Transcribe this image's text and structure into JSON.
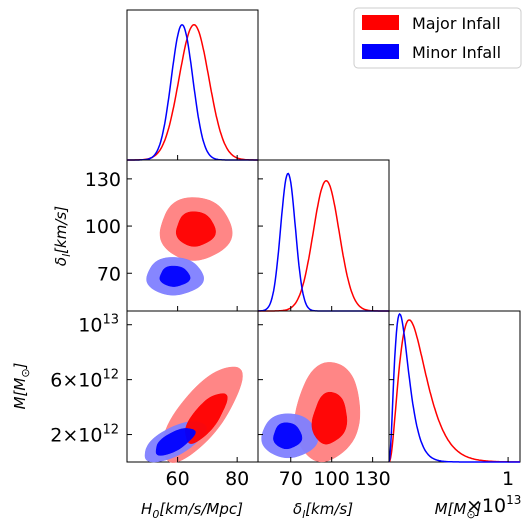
{
  "chart_data": {
    "type": "corner",
    "parameters": [
      {
        "key": "H0",
        "label": "H_0[km/s/Mpc]",
        "ticks": [
          60,
          80
        ],
        "tick_labels": [
          "60",
          "80"
        ],
        "range": [
          43,
          87
        ]
      },
      {
        "key": "delta",
        "label": "δ_l[km/s]",
        "ticks": [
          70,
          100,
          130
        ],
        "tick_labels": [
          "70",
          "100",
          "130"
        ],
        "range": [
          46,
          142
        ]
      },
      {
        "key": "M",
        "label": "M[M_⊙]",
        "ticks": [
          2000000000000.0,
          6000000000000.0,
          10000000000000.0
        ],
        "tick_labels": [
          "2×10^12",
          "6×10^12",
          "10^13"
        ],
        "range": [
          0,
          11000000000000.0
        ],
        "offset_text": "×10^13"
      }
    ],
    "offset_text": "×10",
    "offset_exp": "13",
    "m_axis_tick_label": "1",
    "ylabel_delta_parts": {
      "main": "δ",
      "sub": "l",
      "rest": "[km/s]"
    },
    "ylabel_M_parts": {
      "main": "M[M",
      "sub": "⊙",
      "rest": "]"
    },
    "xlabel_H0_parts": {
      "main": "H",
      "sub": "0",
      "rest": "[km/s/Mpc]"
    },
    "xlabel_delta_parts": {
      "main": "δ",
      "sub": "l",
      "rest": "[km/s]"
    },
    "xlabel_M_parts": {
      "main": "M[M",
      "sub": "⊙",
      "rest": "]"
    },
    "series": [
      {
        "name": "Major Infall",
        "color": "#ff0000",
        "fill_inner": "#ff0000",
        "fill_outer": "#ff8080",
        "H0": {
          "mean": 65.5,
          "sd": 5.0
        },
        "delta": {
          "mean": 96,
          "sd": 9.5
        },
        "M": {
          "mode": 1700000000000.0,
          "tail": 9500000000000.0
        },
        "contour_H0_delta": {
          "center": [
            66,
            98
          ],
          "r68": [
            6.5,
            11
          ],
          "r95": [
            12,
            20
          ]
        },
        "contour_H0_M": {
          "center": [
            68,
            3500000000000.0
          ],
          "angle_deg": 53
        },
        "contour_delta_M": {
          "center": [
            97,
            3600000000000.0
          ]
        }
      },
      {
        "name": "Minor Infall",
        "color": "#0000ff",
        "fill_inner": "#0000ff",
        "fill_outer": "#8080ff",
        "H0": {
          "mean": 61.5,
          "sd": 3.6
        },
        "delta": {
          "mean": 68,
          "sd": 5.4
        },
        "M": {
          "mode": 900000000000.0,
          "tail": 3600000000000.0
        },
        "contour_H0_delta": {
          "center": [
            59,
            68
          ],
          "r68": [
            5,
            6.5
          ],
          "r95": [
            9.5,
            12
          ]
        },
        "contour_H0_M": {
          "center": [
            59,
            1500000000000.0
          ]
        },
        "contour_delta_M": {
          "center": [
            69,
            1900000000000.0
          ]
        }
      }
    ],
    "legend": {
      "placement": "top-right",
      "entries": [
        "Major Infall",
        "Minor Infall"
      ]
    }
  }
}
